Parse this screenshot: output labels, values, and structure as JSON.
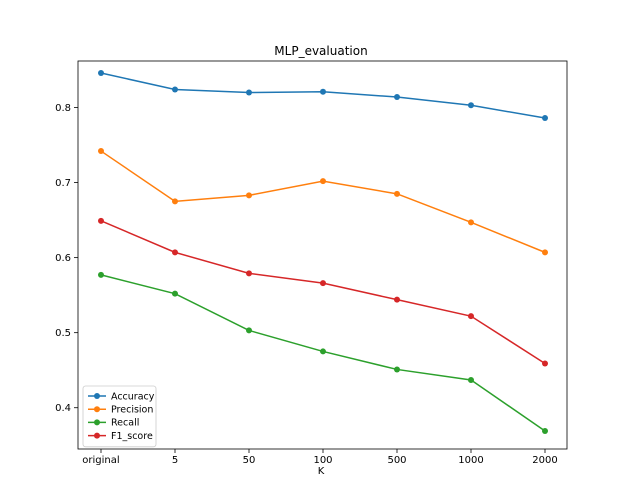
{
  "chart_data": {
    "type": "line",
    "title": "MLP_evaluation",
    "xlabel": "K",
    "ylabel": "",
    "categories": [
      "original",
      "5",
      "50",
      "100",
      "500",
      "1000",
      "2000"
    ],
    "ylim": [
      0.345,
      0.862
    ],
    "yticks": [
      "0.4",
      "0.5",
      "0.6",
      "0.7",
      "0.8"
    ],
    "grid": false,
    "legend_position": "lower-left",
    "series": [
      {
        "name": "Accuracy",
        "color": "#1f77b4",
        "values": [
          0.846,
          0.824,
          0.82,
          0.821,
          0.814,
          0.803,
          0.786
        ]
      },
      {
        "name": "Precision",
        "color": "#ff7f0e",
        "values": [
          0.742,
          0.675,
          0.683,
          0.702,
          0.685,
          0.647,
          0.607
        ]
      },
      {
        "name": "Recall",
        "color": "#2ca02c",
        "values": [
          0.577,
          0.552,
          0.503,
          0.475,
          0.451,
          0.437,
          0.369
        ]
      },
      {
        "name": "F1_score",
        "color": "#d62728",
        "values": [
          0.649,
          0.607,
          0.579,
          0.566,
          0.544,
          0.522,
          0.459
        ]
      }
    ]
  }
}
